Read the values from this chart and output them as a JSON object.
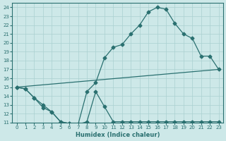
{
  "xlabel": "Humidex (Indice chaleur)",
  "xlim": [
    -0.5,
    23.5
  ],
  "ylim": [
    11,
    24.5
  ],
  "xticks": [
    0,
    1,
    2,
    3,
    4,
    5,
    6,
    7,
    8,
    9,
    10,
    11,
    12,
    13,
    14,
    15,
    16,
    17,
    18,
    19,
    20,
    21,
    22,
    23
  ],
  "yticks": [
    11,
    12,
    13,
    14,
    15,
    16,
    17,
    18,
    19,
    20,
    21,
    22,
    23,
    24
  ],
  "bg_color": "#cde8e8",
  "grid_color": "#aad0d0",
  "line_color": "#2a7070",
  "curve1_x": [
    0,
    1,
    2,
    3,
    4,
    5,
    6,
    7,
    8,
    9,
    10,
    11,
    12,
    13,
    14,
    15,
    16,
    17,
    18,
    19,
    20,
    21,
    22,
    23
  ],
  "curve1_y": [
    15.0,
    14.8,
    13.8,
    12.7,
    12.2,
    11.1,
    10.9,
    10.8,
    11.1,
    14.5,
    12.8,
    11.1,
    11.1,
    11.1,
    11.1,
    11.1,
    11.1,
    11.1,
    11.1,
    11.1,
    11.1,
    11.1,
    11.1,
    11.1
  ],
  "curve2_x": [
    0,
    1,
    2,
    3,
    4,
    5,
    6,
    7,
    8,
    9,
    10,
    11,
    12,
    13,
    14,
    15,
    16,
    17,
    18,
    19,
    20,
    21,
    22,
    23
  ],
  "curve2_y": [
    15.0,
    14.8,
    13.8,
    13.0,
    12.2,
    11.1,
    10.9,
    10.8,
    14.5,
    15.5,
    18.3,
    19.5,
    19.8,
    21.0,
    22.0,
    23.5,
    24.0,
    23.8,
    22.2,
    21.0,
    20.5,
    18.5,
    18.5,
    17.0
  ],
  "curve3_x": [
    0,
    23
  ],
  "curve3_y": [
    15.0,
    17.0
  ],
  "marker": "D",
  "marker_size": 2.5,
  "lw": 0.9
}
